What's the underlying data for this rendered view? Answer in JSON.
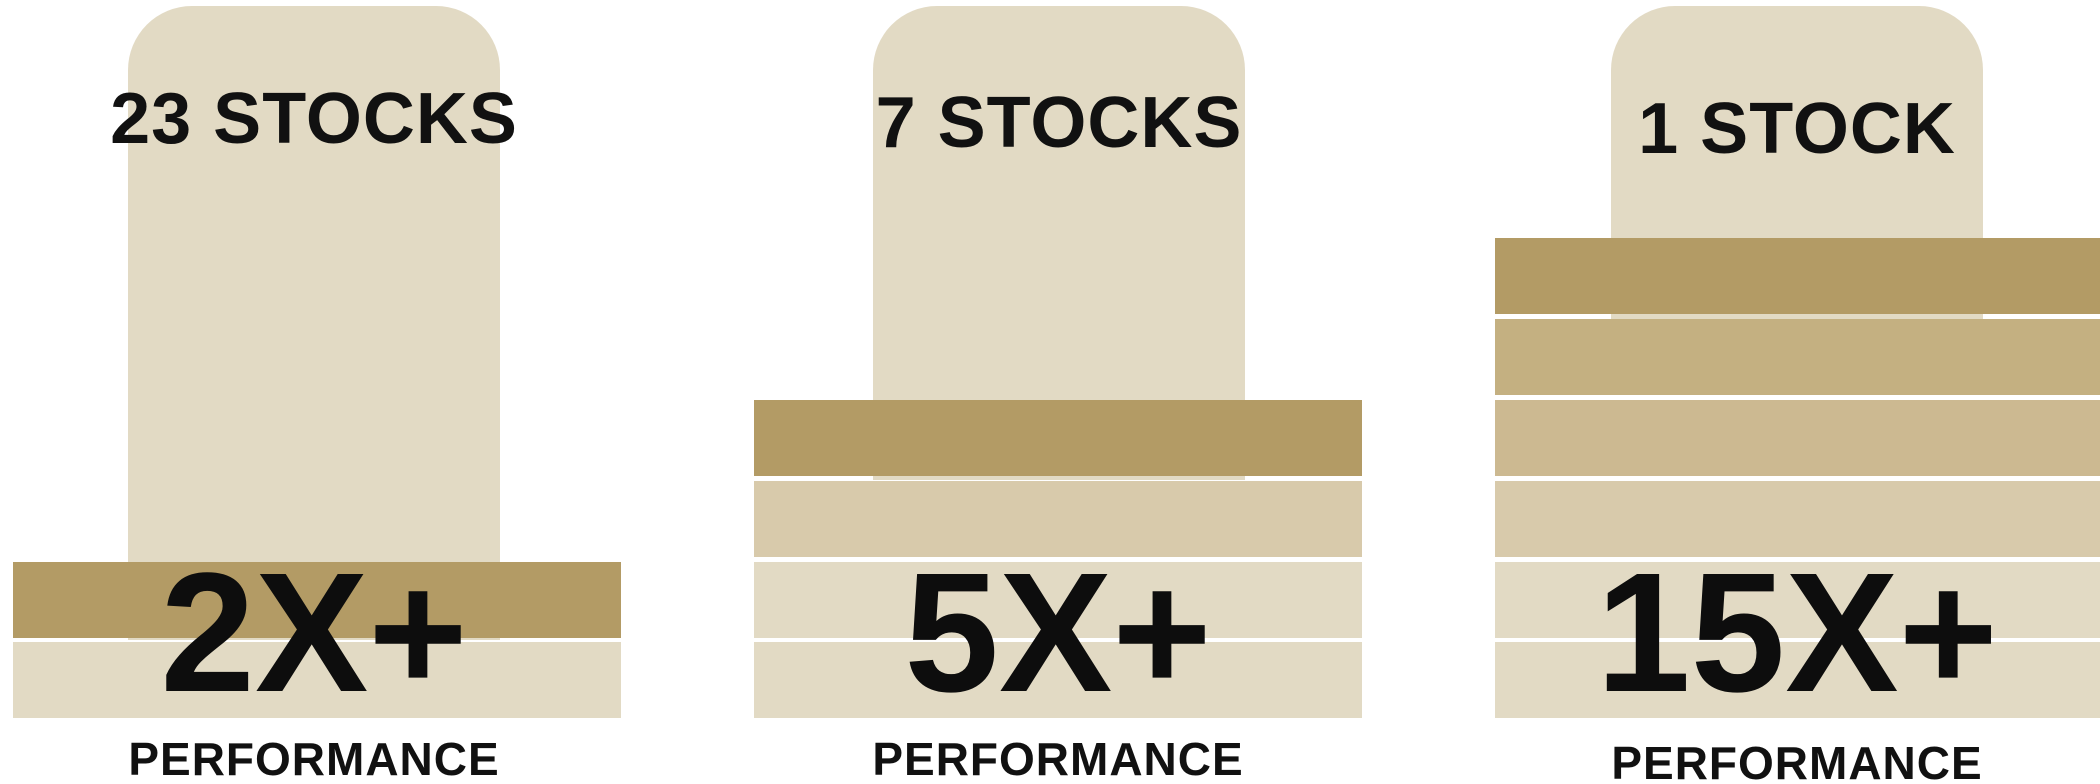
{
  "colors": {
    "tab": "#e2dac4",
    "bar_dark": "#b39b65",
    "bar_mid": "#ccb991",
    "bar_light": "#d8caab",
    "bar_lightest": "#e2dac4",
    "text": "#111111"
  },
  "panels": [
    {
      "count_label": "23 STOCKS",
      "multiplier": "2X+",
      "performance_label": "PERFORMANCE",
      "level": 2
    },
    {
      "count_label": "7 STOCKS",
      "multiplier": "5X+",
      "performance_label": "PERFORMANCE",
      "level": 4
    },
    {
      "count_label": "1 STOCK",
      "multiplier": "15X+",
      "performance_label": "PERFORMANCE",
      "level": 6
    }
  ]
}
